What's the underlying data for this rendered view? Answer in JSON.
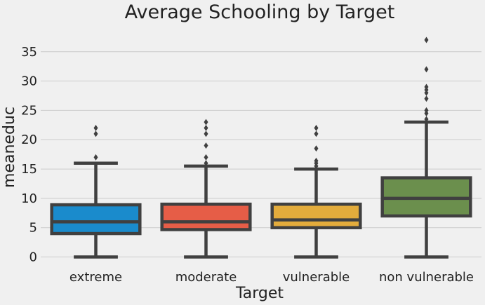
{
  "chart_data": {
    "type": "box",
    "title": "Average Schooling by Target",
    "xlabel": "Target",
    "ylabel": "meaneduc",
    "ylim": [
      -1.85,
      38.8
    ],
    "yticks": [
      0,
      5,
      10,
      15,
      20,
      25,
      30,
      35
    ],
    "grid": "horizontal",
    "categories": [
      "extreme",
      "moderate",
      "vulnerable",
      "non vulnerable"
    ],
    "colors": [
      "#1a8bcc",
      "#e65d47",
      "#e3ac3c",
      "#6b8f4d"
    ],
    "edge_color": "#404040",
    "boxes": [
      {
        "label": "extreme",
        "whisker_low": 0,
        "q1": 4,
        "median": 6,
        "q3": 8.9,
        "whisker_high": 16,
        "outliers": [
          17,
          21,
          22
        ]
      },
      {
        "label": "moderate",
        "whisker_low": 0,
        "q1": 4.67,
        "median": 6,
        "q3": 9,
        "whisker_high": 15.5,
        "outliers": [
          16,
          17,
          19,
          21,
          22,
          23
        ]
      },
      {
        "label": "vulnerable",
        "whisker_low": 0,
        "q1": 5,
        "median": 6.33,
        "q3": 9,
        "whisker_high": 15,
        "outliers": [
          15.5,
          16,
          16.4,
          18.5,
          21,
          22
        ]
      },
      {
        "label": "non vulnerable",
        "whisker_low": 0,
        "q1": 7,
        "median": 10,
        "q3": 13.5,
        "whisker_high": 23,
        "outliers": [
          23.5,
          24.5,
          25,
          27,
          28,
          28.5,
          29,
          32,
          37
        ]
      }
    ]
  }
}
